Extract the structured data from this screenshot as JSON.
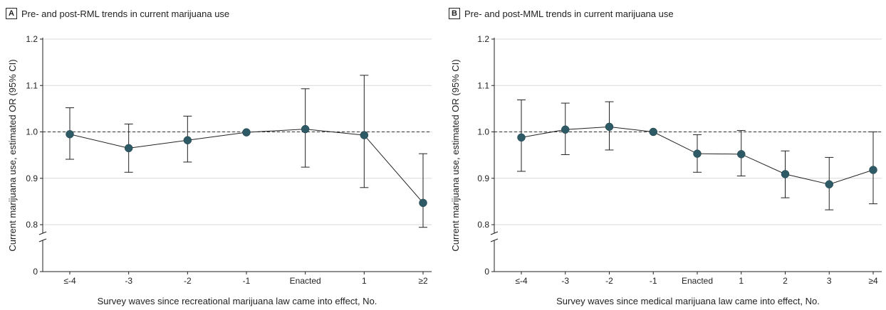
{
  "chart_data": [
    {
      "panel_letter": "A",
      "title": "Pre- and post-RML trends in current marijuana use",
      "type": "line",
      "xlabel": "Survey waves since recreational marijuana law came into effect, No.",
      "ylabel": "Current marijuana use, estimated OR (95% CI)",
      "ylim": [
        0,
        1.2
      ],
      "yticks": [
        "0",
        "0.8",
        "0.9",
        "1.0",
        "1.1",
        "1.2"
      ],
      "y_break": true,
      "reference_line": 1.0,
      "categories": [
        "≤-4",
        "-3",
        "-2",
        "-1",
        "Enacted",
        "1",
        "≥2"
      ],
      "values": [
        0.995,
        0.965,
        0.982,
        0.999,
        1.006,
        0.993,
        0.847
      ],
      "ci_low": [
        0.941,
        0.913,
        0.935,
        0.999,
        0.924,
        0.88,
        0.755
      ],
      "ci_high": [
        1.052,
        1.017,
        1.034,
        0.999,
        1.093,
        1.122,
        0.953
      ],
      "grid": "horizontal",
      "marker_color": "#2e5a66"
    },
    {
      "panel_letter": "B",
      "title": "Pre- and post-MML trends in current marijuana use",
      "type": "line",
      "xlabel": "Survey waves since medical marijuana law came into effect, No.",
      "ylabel": "Current marijuana use, estimated OR (95% CI)",
      "ylim": [
        0,
        1.2
      ],
      "yticks": [
        "0",
        "0.8",
        "0.9",
        "1.0",
        "1.1",
        "1.2"
      ],
      "y_break": true,
      "reference_line": 1.0,
      "categories": [
        "≤-4",
        "-3",
        "-2",
        "-1",
        "Enacted",
        "1",
        "2",
        "3",
        "≥4"
      ],
      "values": [
        0.988,
        1.005,
        1.011,
        1.0,
        0.953,
        0.952,
        0.909,
        0.887,
        0.918
      ],
      "ci_low": [
        0.915,
        0.951,
        0.961,
        1.0,
        0.913,
        0.905,
        0.858,
        0.832,
        0.845
      ],
      "ci_high": [
        1.069,
        1.062,
        1.065,
        1.0,
        0.994,
        1.003,
        0.959,
        0.945,
        1.0
      ],
      "grid": "horizontal",
      "marker_color": "#2e5a66"
    }
  ]
}
